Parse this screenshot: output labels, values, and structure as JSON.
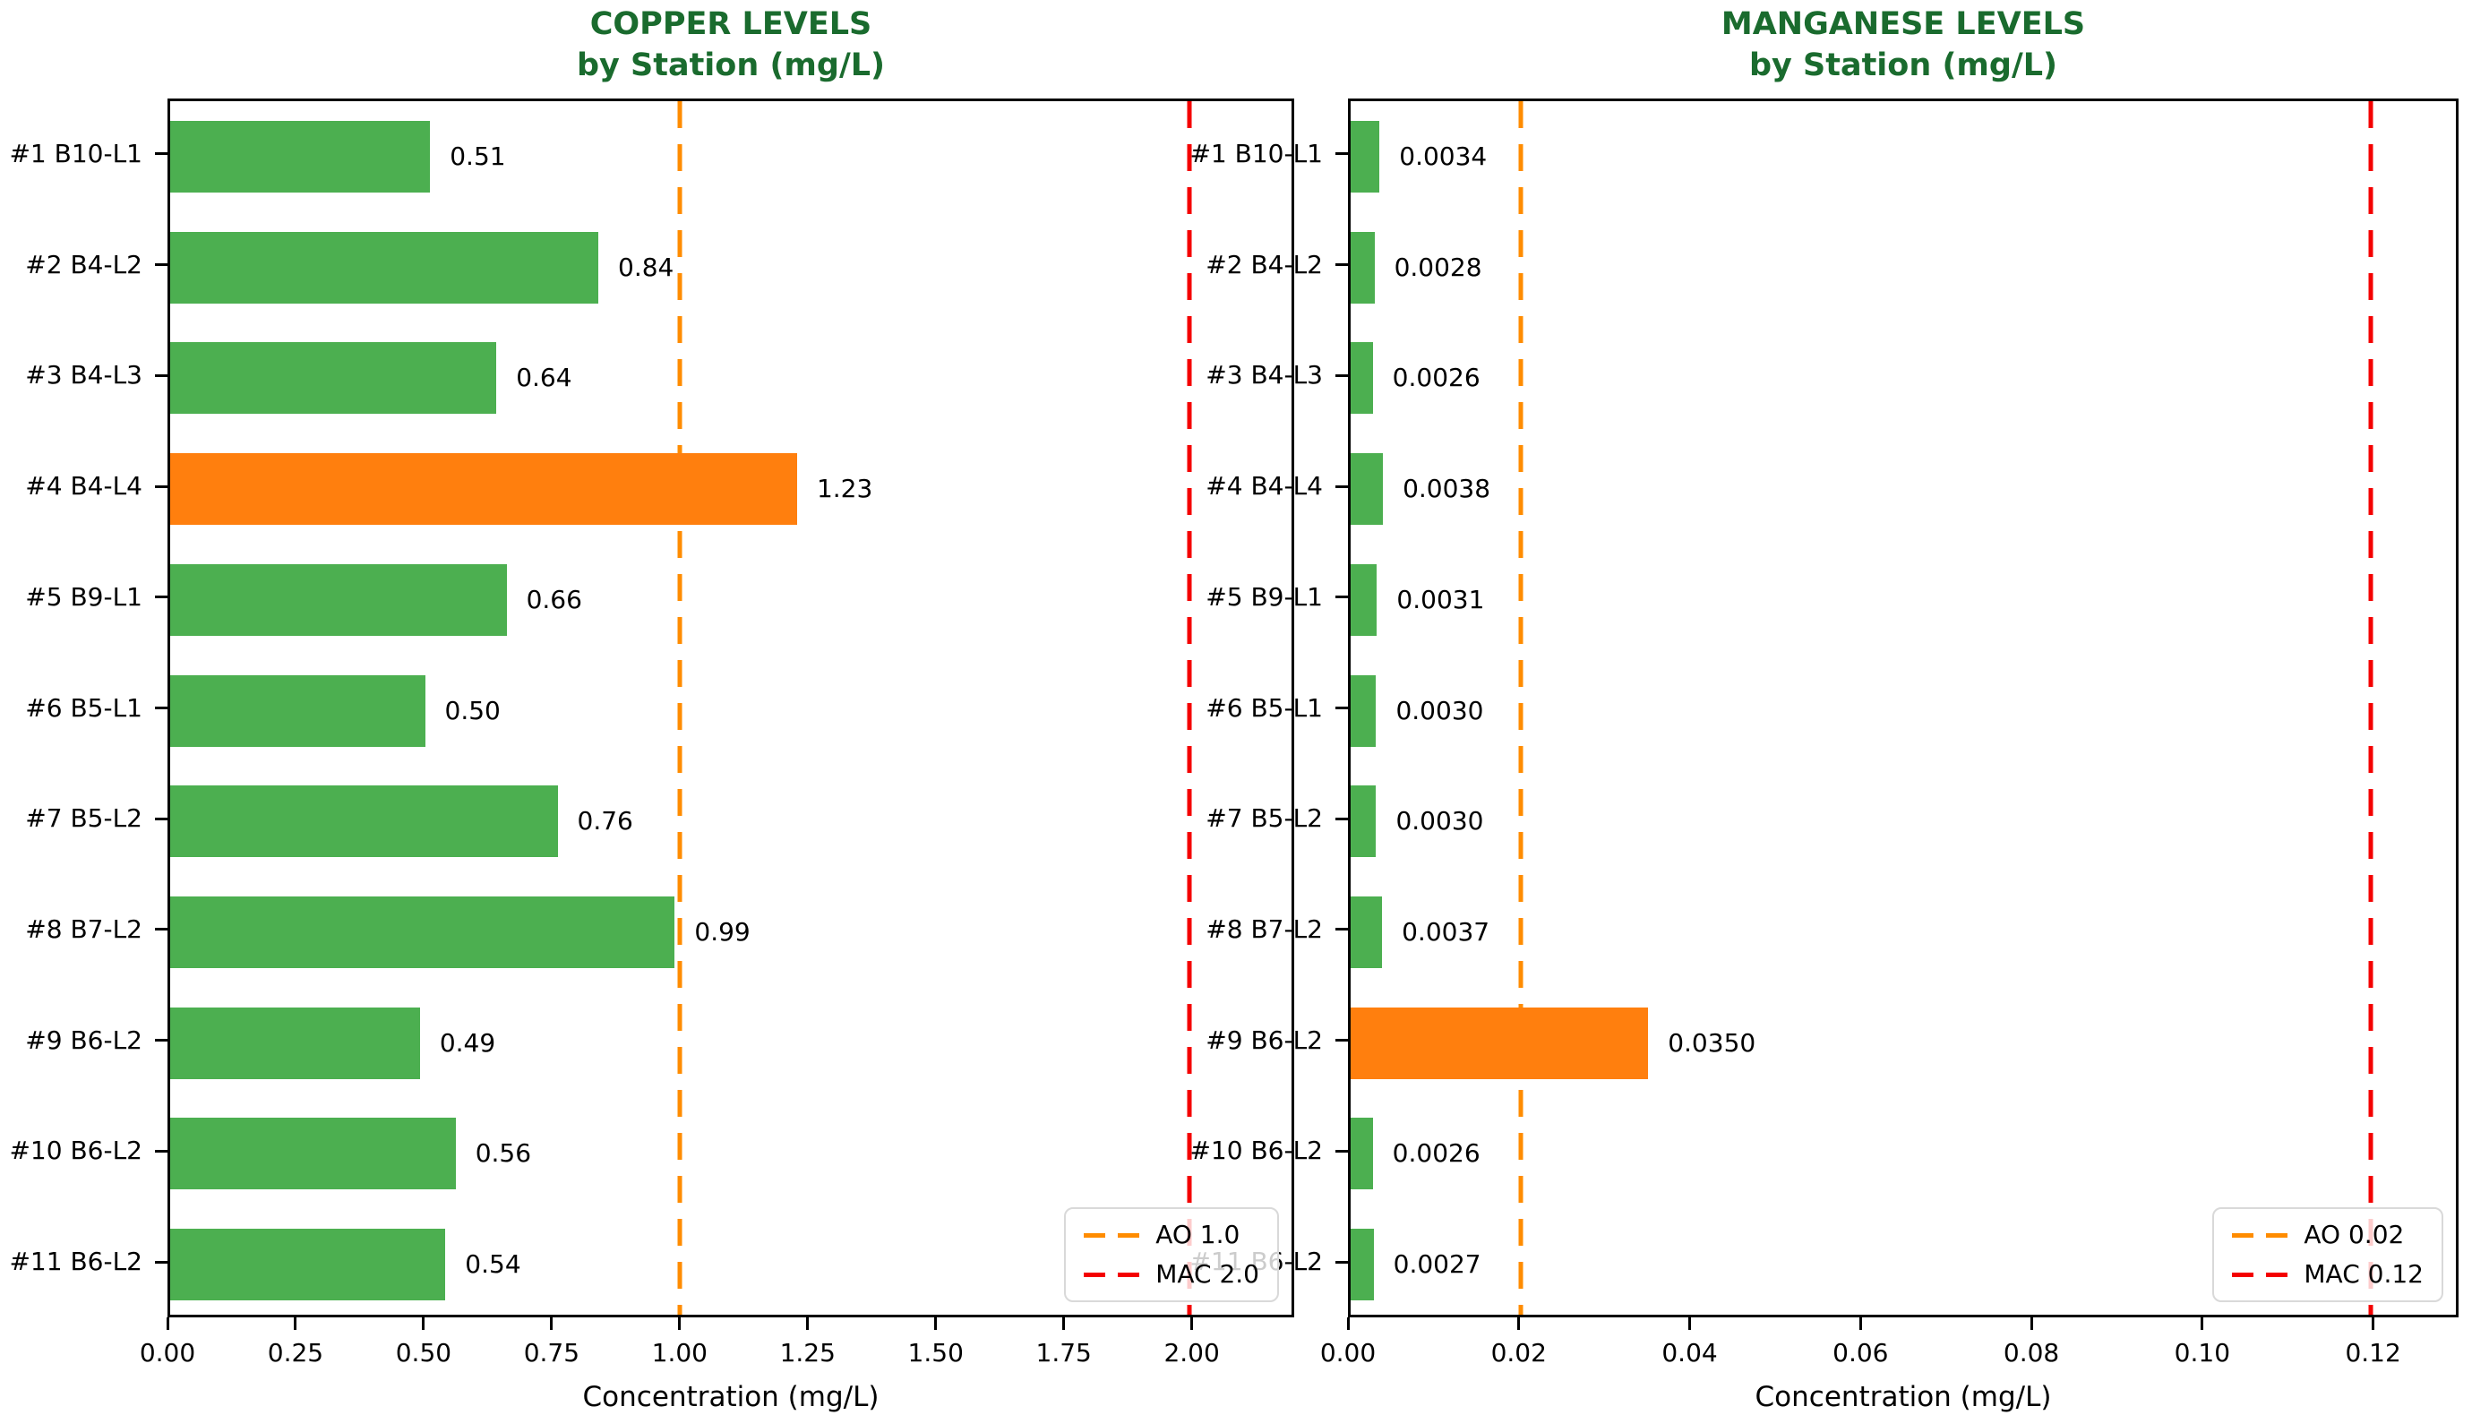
{
  "figure": {
    "background": "#ffffff"
  },
  "colors": {
    "bar_normal": "#4caf50",
    "bar_exceed": "#ff7f0e",
    "title_green": "#1a6b2e",
    "axis_black": "#000000",
    "legend_border": "#d9d9d9",
    "ao_line": "#ff8c00",
    "mac_line": "#f40000"
  },
  "chart_data": [
    {
      "type": "bar",
      "orientation": "horizontal",
      "title_lines": [
        "COPPER LEVELS",
        "by Station (mg/L)"
      ],
      "xlabel": "Concentration (mg/L)",
      "categories": [
        "#1 B10-L1",
        "#2 B4-L2",
        "#3 B4-L3",
        "#4 B4-L4",
        "#5 B9-L1",
        "#6 B5-L1",
        "#7 B5-L2",
        "#8 B7-L2",
        "#9 B6-L2",
        "#10 B6-L2",
        "#11 B6-L2"
      ],
      "values": [
        0.51,
        0.84,
        0.64,
        1.23,
        0.66,
        0.5,
        0.76,
        0.99,
        0.49,
        0.56,
        0.54
      ],
      "value_labels": [
        "0.51",
        "0.84",
        "0.64",
        "1.23",
        "0.66",
        "0.50",
        "0.76",
        "0.99",
        "0.49",
        "0.56",
        "0.54"
      ],
      "xlim": [
        0,
        2.2
      ],
      "x_ticks": [
        0,
        0.25,
        0.5,
        0.75,
        1.0,
        1.25,
        1.5,
        1.75,
        2.0
      ],
      "x_tick_labels": [
        "0.00",
        "0.25",
        "0.50",
        "0.75",
        "1.00",
        "1.25",
        "1.50",
        "1.75",
        "2.00"
      ],
      "grid": false,
      "legend_position": "lower right",
      "thresholds": [
        {
          "name": "AO",
          "label": "AO 1.0",
          "value": 1.0,
          "color": "#ff8c00"
        },
        {
          "name": "MAC",
          "label": "MAC 2.0",
          "value": 2.0,
          "color": "#f40000"
        }
      ]
    },
    {
      "type": "bar",
      "orientation": "horizontal",
      "title_lines": [
        "MANGANESE LEVELS",
        "by Station (mg/L)"
      ],
      "xlabel": "Concentration (mg/L)",
      "categories": [
        "#1 B10-L1",
        "#2 B4-L2",
        "#3 B4-L3",
        "#4 B4-L4",
        "#5 B9-L1",
        "#6 B5-L1",
        "#7 B5-L2",
        "#8 B7-L2",
        "#9 B6-L2",
        "#10 B6-L2",
        "#11 B6-L2"
      ],
      "values": [
        0.0034,
        0.0028,
        0.0026,
        0.0038,
        0.0031,
        0.003,
        0.003,
        0.0037,
        0.035,
        0.0026,
        0.0027
      ],
      "value_labels": [
        "0.0034",
        "0.0028",
        "0.0026",
        "0.0038",
        "0.0031",
        "0.0030",
        "0.0030",
        "0.0037",
        "0.0350",
        "0.0026",
        "0.0027"
      ],
      "xlim": [
        0,
        0.13
      ],
      "x_ticks": [
        0,
        0.02,
        0.04,
        0.06,
        0.08,
        0.1,
        0.12
      ],
      "x_tick_labels": [
        "0.00",
        "0.02",
        "0.04",
        "0.06",
        "0.08",
        "0.10",
        "0.12"
      ],
      "grid": false,
      "legend_position": "lower right",
      "thresholds": [
        {
          "name": "AO",
          "label": "AO 0.02",
          "value": 0.02,
          "color": "#ff8c00"
        },
        {
          "name": "MAC",
          "label": "MAC 0.12",
          "value": 0.12,
          "color": "#f40000"
        }
      ]
    }
  ]
}
